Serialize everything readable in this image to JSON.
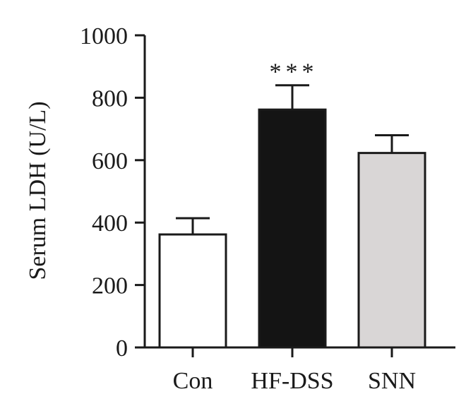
{
  "chart_data": {
    "type": "bar",
    "title": "",
    "xlabel": "",
    "ylabel": "Serum LDH (U/L)",
    "ylim": [
      0,
      1000
    ],
    "yticks": [
      0,
      200,
      400,
      600,
      800,
      1000
    ],
    "categories": [
      "Con",
      "HF-DSS",
      "SNN"
    ],
    "values": [
      362,
      762,
      623
    ],
    "errors": [
      52,
      78,
      57
    ],
    "bar_colors": [
      "#ffffff",
      "#141414",
      "#d9d6d6"
    ],
    "annotations": [
      "",
      "***",
      ""
    ],
    "grid": false,
    "legend": "none"
  }
}
